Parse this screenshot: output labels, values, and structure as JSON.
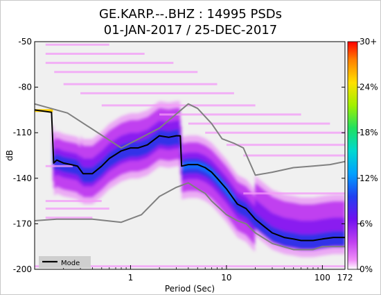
{
  "chart_data": {
    "type": "heatmap",
    "title_line1": "GE.KARP.--.BHZ : 14995 PSDs",
    "title_line2": "01-JAN-2017 / 25-DEC-2017",
    "xlabel": "Period (Sec)",
    "ylabel": "dB",
    "x_scale": "log",
    "xlim": [
      0.1,
      172
    ],
    "ylim": [
      -200,
      -50
    ],
    "x_ticks": [
      {
        "value": 1,
        "label": "1"
      },
      {
        "value": 10,
        "label": "10"
      },
      {
        "value": 100,
        "label": "100"
      },
      {
        "value": 172,
        "label": "172"
      }
    ],
    "y_ticks": [
      {
        "value": -50,
        "label": "-50"
      },
      {
        "value": -80,
        "label": "-80"
      },
      {
        "value": -110,
        "label": "-110"
      },
      {
        "value": -140,
        "label": "-140"
      },
      {
        "value": -170,
        "label": "-170"
      },
      {
        "value": -200,
        "label": "-200"
      }
    ],
    "colorbar_ticks": [
      {
        "fraction": 1.0,
        "label": "30+"
      },
      {
        "fraction": 0.8,
        "label": "24%"
      },
      {
        "fraction": 0.6,
        "label": "18%"
      },
      {
        "fraction": 0.4,
        "label": "12%"
      },
      {
        "fraction": 0.2,
        "label": "6%"
      },
      {
        "fraction": 0.0,
        "label": "0%"
      }
    ],
    "legend": {
      "label": "Mode",
      "placement": "bottom-left"
    },
    "mode": {
      "period": [
        0.1,
        0.15,
        0.158,
        0.17,
        0.2,
        0.24,
        0.28,
        0.32,
        0.4,
        0.5,
        0.6,
        0.8,
        1.0,
        1.2,
        1.5,
        2.0,
        2.5,
        3.0,
        3.3,
        3.4,
        4.0,
        5.0,
        6.0,
        7.0,
        8.0,
        10,
        13,
        16,
        20,
        25,
        30,
        40,
        50,
        60,
        80,
        100,
        130,
        172
      ],
      "db": [
        -95,
        -96.5,
        -130,
        -128,
        -130,
        -131,
        -132,
        -137,
        -137,
        -132,
        -127,
        -122,
        -120,
        -120,
        -118,
        -112,
        -113,
        -112,
        -112,
        -132,
        -131,
        -131,
        -133,
        -136,
        -140,
        -147,
        -157,
        -160,
        -167,
        -172,
        -176,
        -179,
        -180,
        -181,
        -181,
        -180,
        -179,
        -179
      ]
    },
    "nlnm": {
      "period": [
        0.1,
        0.17,
        0.4,
        0.8,
        1.3,
        2.0,
        3.0,
        4.0,
        5.0,
        6.0,
        7.0,
        10,
        13,
        16,
        20,
        30,
        50,
        80,
        100,
        172
      ],
      "db": [
        -168,
        -167,
        -167,
        -169,
        -164,
        -152,
        -146,
        -143,
        -147,
        -150,
        -155,
        -164,
        -168,
        -170,
        -176,
        -183,
        -187,
        -187,
        -185,
        -185
      ]
    },
    "nhnm": {
      "period": [
        0.1,
        0.22,
        0.8,
        2.0,
        4.0,
        5.0,
        7.0,
        9.0,
        12,
        15,
        20,
        30,
        50,
        80,
        120,
        172
      ],
      "db": [
        -91,
        -97,
        -120,
        -107,
        -91,
        -94,
        -104,
        -114,
        -117,
        -120,
        -138,
        -136,
        -133,
        -132,
        -131,
        -129
      ]
    },
    "probability_colors": [
      "#ffffff",
      "#e879f8",
      "#c040f0",
      "#8a1cf0",
      "#3030e8",
      "#0a6cff",
      "#00c0ff",
      "#00e0a0",
      "#40e040",
      "#d0f000",
      "#ffd000",
      "#ff8000",
      "#ff1000"
    ]
  }
}
